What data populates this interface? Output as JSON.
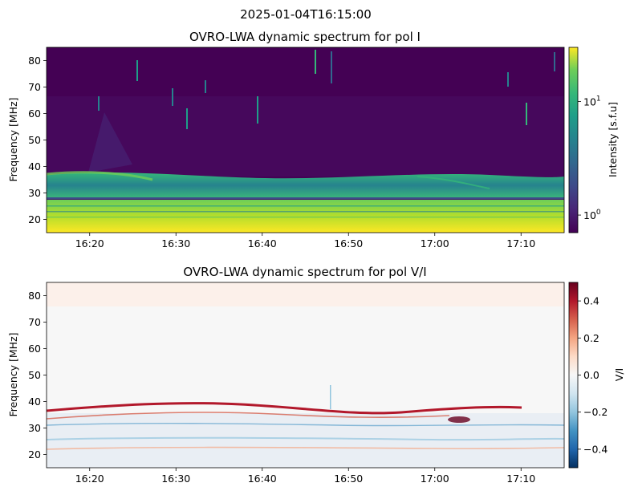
{
  "figure": {
    "suptitle": "2025-01-04T16:15:00"
  },
  "chart_data": [
    {
      "type": "heatmap",
      "title": "OVRO-LWA dynamic spectrum for pol I",
      "xlabel": "",
      "ylabel": "Frequency [MHz]",
      "x_ticks": [
        "16:20",
        "16:30",
        "16:40",
        "16:50",
        "17:00",
        "17:10"
      ],
      "x_range": [
        "16:15",
        "17:15"
      ],
      "y_ticks": [
        20,
        30,
        40,
        50,
        60,
        70,
        80
      ],
      "ylim": [
        15,
        85
      ],
      "colormap": "viridis",
      "color_scale": "log",
      "colorbar": {
        "label": "Intensity [s.f.u]",
        "range": [
          0.7,
          30
        ],
        "ticks": [
          {
            "value": 1,
            "base": "10",
            "exp": "0"
          },
          {
            "value": 10,
            "base": "10",
            "exp": "1"
          }
        ]
      },
      "features": {
        "low_band_top_mhz": 26,
        "emission_band_top_mhz": 37,
        "gap_line_mhz": 27.5
      }
    },
    {
      "type": "heatmap",
      "title": "OVRO-LWA dynamic spectrum for pol V/I",
      "xlabel": "",
      "ylabel": "Frequency [MHz]",
      "x_ticks": [
        "16:20",
        "16:30",
        "16:40",
        "16:50",
        "17:00",
        "17:10"
      ],
      "x_range": [
        "16:15",
        "17:15"
      ],
      "y_ticks": [
        20,
        30,
        40,
        50,
        60,
        70,
        80
      ],
      "ylim": [
        15,
        85
      ],
      "colormap": "RdBu_r",
      "color_scale": "linear",
      "colorbar": {
        "label": "V/I",
        "range": [
          -0.5,
          0.5
        ],
        "ticks": [
          "0.4",
          "0.2",
          "0.0",
          "−0.2",
          "−0.4"
        ],
        "tick_values": [
          0.4,
          0.2,
          0.0,
          -0.2,
          -0.4
        ]
      }
    }
  ]
}
